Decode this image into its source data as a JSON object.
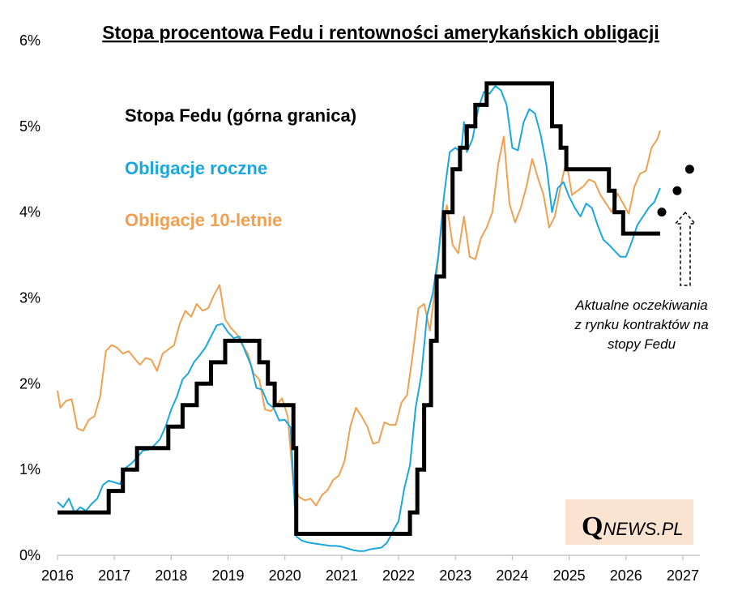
{
  "chart_data": {
    "type": "line",
    "title": "Stopa procentowa Fedu i rentowności amerykańskich obligacji",
    "xlim": [
      2016,
      2027.3
    ],
    "ylim": [
      0,
      6
    ],
    "x_ticks": [
      "2016",
      "2017",
      "2018",
      "2019",
      "2020",
      "2021",
      "2022",
      "2023",
      "2024",
      "2025",
      "2026",
      "2027"
    ],
    "y_ticks": [
      "0%",
      "1%",
      "2%",
      "3%",
      "4%",
      "5%",
      "6%"
    ],
    "colors": {
      "fed": "#000000",
      "oneyear": "#1aa7e0",
      "tenyear": "#f0a050",
      "expectations": "#000000"
    },
    "series": [
      {
        "name": "Stopa Fedu (górna granica)",
        "key": "fed",
        "points": [
          [
            2016.0,
            0.5
          ],
          [
            2016.9,
            0.5
          ],
          [
            2016.9,
            0.75
          ],
          [
            2017.15,
            0.75
          ],
          [
            2017.15,
            1.0
          ],
          [
            2017.4,
            1.0
          ],
          [
            2017.4,
            1.25
          ],
          [
            2017.95,
            1.25
          ],
          [
            2017.95,
            1.5
          ],
          [
            2018.2,
            1.5
          ],
          [
            2018.2,
            1.75
          ],
          [
            2018.45,
            1.75
          ],
          [
            2018.45,
            2.0
          ],
          [
            2018.7,
            2.0
          ],
          [
            2018.7,
            2.25
          ],
          [
            2018.95,
            2.25
          ],
          [
            2018.95,
            2.5
          ],
          [
            2019.55,
            2.5
          ],
          [
            2019.55,
            2.25
          ],
          [
            2019.7,
            2.25
          ],
          [
            2019.7,
            2.0
          ],
          [
            2019.82,
            2.0
          ],
          [
            2019.82,
            1.75
          ],
          [
            2020.15,
            1.75
          ],
          [
            2020.15,
            1.25
          ],
          [
            2020.2,
            1.25
          ],
          [
            2020.2,
            0.25
          ],
          [
            2022.2,
            0.25
          ],
          [
            2022.2,
            0.5
          ],
          [
            2022.33,
            0.5
          ],
          [
            2022.33,
            1.0
          ],
          [
            2022.45,
            1.0
          ],
          [
            2022.45,
            1.75
          ],
          [
            2022.57,
            1.75
          ],
          [
            2022.57,
            2.5
          ],
          [
            2022.67,
            2.5
          ],
          [
            2022.67,
            3.25
          ],
          [
            2022.8,
            3.25
          ],
          [
            2022.8,
            4.0
          ],
          [
            2022.95,
            4.0
          ],
          [
            2022.95,
            4.5
          ],
          [
            2023.08,
            4.5
          ],
          [
            2023.08,
            4.75
          ],
          [
            2023.2,
            4.75
          ],
          [
            2023.2,
            5.0
          ],
          [
            2023.35,
            5.0
          ],
          [
            2023.35,
            5.25
          ],
          [
            2023.55,
            5.25
          ],
          [
            2023.55,
            5.5
          ],
          [
            2024.7,
            5.5
          ],
          [
            2024.7,
            5.0
          ],
          [
            2024.85,
            5.0
          ],
          [
            2024.85,
            4.75
          ],
          [
            2024.95,
            4.75
          ],
          [
            2024.95,
            4.5
          ],
          [
            2025.7,
            4.5
          ],
          [
            2025.7,
            4.25
          ],
          [
            2025.8,
            4.25
          ],
          [
            2025.8,
            4.0
          ],
          [
            2025.95,
            4.0
          ],
          [
            2025.95,
            3.75
          ],
          [
            2026.6,
            3.75
          ]
        ]
      },
      {
        "name": "Obligacje roczne",
        "key": "oneyear",
        "points": [
          [
            2016.0,
            0.62
          ],
          [
            2016.1,
            0.56
          ],
          [
            2016.2,
            0.66
          ],
          [
            2016.3,
            0.5
          ],
          [
            2016.4,
            0.56
          ],
          [
            2016.5,
            0.52
          ],
          [
            2016.6,
            0.6
          ],
          [
            2016.7,
            0.66
          ],
          [
            2016.8,
            0.82
          ],
          [
            2016.9,
            0.87
          ],
          [
            2017.0,
            0.85
          ],
          [
            2017.1,
            0.83
          ],
          [
            2017.2,
            1.02
          ],
          [
            2017.3,
            1.07
          ],
          [
            2017.4,
            1.14
          ],
          [
            2017.5,
            1.22
          ],
          [
            2017.6,
            1.23
          ],
          [
            2017.7,
            1.28
          ],
          [
            2017.8,
            1.35
          ],
          [
            2017.9,
            1.5
          ],
          [
            2018.0,
            1.7
          ],
          [
            2018.1,
            1.85
          ],
          [
            2018.2,
            2.05
          ],
          [
            2018.3,
            2.12
          ],
          [
            2018.4,
            2.25
          ],
          [
            2018.5,
            2.33
          ],
          [
            2018.6,
            2.42
          ],
          [
            2018.7,
            2.55
          ],
          [
            2018.8,
            2.68
          ],
          [
            2018.9,
            2.7
          ],
          [
            2019.0,
            2.6
          ],
          [
            2019.1,
            2.53
          ],
          [
            2019.2,
            2.55
          ],
          [
            2019.3,
            2.38
          ],
          [
            2019.4,
            2.22
          ],
          [
            2019.5,
            1.95
          ],
          [
            2019.6,
            1.93
          ],
          [
            2019.7,
            1.77
          ],
          [
            2019.8,
            1.72
          ],
          [
            2019.9,
            1.57
          ],
          [
            2020.0,
            1.58
          ],
          [
            2020.1,
            1.49
          ],
          [
            2020.15,
            0.88
          ],
          [
            2020.2,
            0.22
          ],
          [
            2020.3,
            0.17
          ],
          [
            2020.4,
            0.15
          ],
          [
            2020.5,
            0.14
          ],
          [
            2020.6,
            0.13
          ],
          [
            2020.7,
            0.12
          ],
          [
            2020.8,
            0.11
          ],
          [
            2020.9,
            0.11
          ],
          [
            2021.0,
            0.1
          ],
          [
            2021.1,
            0.08
          ],
          [
            2021.2,
            0.06
          ],
          [
            2021.3,
            0.05
          ],
          [
            2021.4,
            0.05
          ],
          [
            2021.5,
            0.07
          ],
          [
            2021.6,
            0.08
          ],
          [
            2021.7,
            0.09
          ],
          [
            2021.8,
            0.15
          ],
          [
            2021.9,
            0.28
          ],
          [
            2022.0,
            0.4
          ],
          [
            2022.1,
            0.78
          ],
          [
            2022.2,
            1.05
          ],
          [
            2022.3,
            1.72
          ],
          [
            2022.4,
            2.1
          ],
          [
            2022.5,
            2.8
          ],
          [
            2022.6,
            3.05
          ],
          [
            2022.7,
            3.5
          ],
          [
            2022.8,
            4.2
          ],
          [
            2022.9,
            4.7
          ],
          [
            2023.0,
            4.75
          ],
          [
            2023.1,
            4.7
          ],
          [
            2023.15,
            5.05
          ],
          [
            2023.2,
            4.7
          ],
          [
            2023.3,
            4.85
          ],
          [
            2023.4,
            5.2
          ],
          [
            2023.5,
            5.4
          ],
          [
            2023.6,
            5.38
          ],
          [
            2023.7,
            5.47
          ],
          [
            2023.8,
            5.42
          ],
          [
            2023.9,
            5.25
          ],
          [
            2024.0,
            4.75
          ],
          [
            2024.1,
            4.72
          ],
          [
            2024.2,
            5.05
          ],
          [
            2024.3,
            5.2
          ],
          [
            2024.4,
            5.15
          ],
          [
            2024.5,
            4.9
          ],
          [
            2024.6,
            4.55
          ],
          [
            2024.7,
            4.0
          ],
          [
            2024.8,
            4.28
          ],
          [
            2024.9,
            4.35
          ],
          [
            2025.0,
            4.18
          ],
          [
            2025.1,
            4.05
          ],
          [
            2025.2,
            3.95
          ],
          [
            2025.3,
            4.1
          ],
          [
            2025.4,
            4.05
          ],
          [
            2025.5,
            3.85
          ],
          [
            2025.6,
            3.68
          ],
          [
            2025.7,
            3.62
          ],
          [
            2025.8,
            3.55
          ],
          [
            2025.9,
            3.48
          ],
          [
            2026.0,
            3.48
          ],
          [
            2026.1,
            3.65
          ],
          [
            2026.2,
            3.85
          ],
          [
            2026.3,
            3.95
          ],
          [
            2026.4,
            4.05
          ],
          [
            2026.5,
            4.12
          ],
          [
            2026.6,
            4.28
          ]
        ]
      },
      {
        "name": "Obligacje 10-letnie",
        "key": "tenyear",
        "points": [
          [
            2016.0,
            1.92
          ],
          [
            2016.05,
            1.72
          ],
          [
            2016.15,
            1.8
          ],
          [
            2016.25,
            1.82
          ],
          [
            2016.35,
            1.48
          ],
          [
            2016.45,
            1.45
          ],
          [
            2016.55,
            1.58
          ],
          [
            2016.65,
            1.62
          ],
          [
            2016.75,
            1.85
          ],
          [
            2016.85,
            2.38
          ],
          [
            2016.95,
            2.45
          ],
          [
            2017.05,
            2.42
          ],
          [
            2017.15,
            2.35
          ],
          [
            2017.25,
            2.38
          ],
          [
            2017.35,
            2.3
          ],
          [
            2017.45,
            2.22
          ],
          [
            2017.55,
            2.3
          ],
          [
            2017.65,
            2.28
          ],
          [
            2017.75,
            2.15
          ],
          [
            2017.85,
            2.35
          ],
          [
            2017.95,
            2.4
          ],
          [
            2018.05,
            2.45
          ],
          [
            2018.15,
            2.7
          ],
          [
            2018.25,
            2.85
          ],
          [
            2018.35,
            2.78
          ],
          [
            2018.45,
            2.93
          ],
          [
            2018.55,
            2.85
          ],
          [
            2018.65,
            2.88
          ],
          [
            2018.75,
            3.03
          ],
          [
            2018.85,
            3.15
          ],
          [
            2018.95,
            2.75
          ],
          [
            2019.05,
            2.65
          ],
          [
            2019.15,
            2.58
          ],
          [
            2019.25,
            2.45
          ],
          [
            2019.35,
            2.35
          ],
          [
            2019.45,
            2.12
          ],
          [
            2019.55,
            2.05
          ],
          [
            2019.65,
            1.7
          ],
          [
            2019.75,
            1.68
          ],
          [
            2019.85,
            1.75
          ],
          [
            2019.95,
            1.83
          ],
          [
            2020.05,
            1.62
          ],
          [
            2020.15,
            0.82
          ],
          [
            2020.25,
            0.68
          ],
          [
            2020.35,
            0.64
          ],
          [
            2020.45,
            0.66
          ],
          [
            2020.55,
            0.58
          ],
          [
            2020.65,
            0.7
          ],
          [
            2020.75,
            0.76
          ],
          [
            2020.85,
            0.88
          ],
          [
            2020.95,
            0.93
          ],
          [
            2021.05,
            1.1
          ],
          [
            2021.15,
            1.5
          ],
          [
            2021.25,
            1.72
          ],
          [
            2021.35,
            1.62
          ],
          [
            2021.45,
            1.5
          ],
          [
            2021.55,
            1.3
          ],
          [
            2021.65,
            1.32
          ],
          [
            2021.75,
            1.55
          ],
          [
            2021.85,
            1.52
          ],
          [
            2021.95,
            1.52
          ],
          [
            2022.05,
            1.78
          ],
          [
            2022.15,
            1.87
          ],
          [
            2022.25,
            2.35
          ],
          [
            2022.35,
            2.88
          ],
          [
            2022.45,
            2.93
          ],
          [
            2022.55,
            2.62
          ],
          [
            2022.65,
            3.15
          ],
          [
            2022.75,
            3.8
          ],
          [
            2022.85,
            4.08
          ],
          [
            2022.95,
            3.62
          ],
          [
            2023.05,
            3.52
          ],
          [
            2023.15,
            3.95
          ],
          [
            2023.25,
            3.48
          ],
          [
            2023.35,
            3.45
          ],
          [
            2023.45,
            3.7
          ],
          [
            2023.55,
            3.82
          ],
          [
            2023.65,
            4.0
          ],
          [
            2023.75,
            4.55
          ],
          [
            2023.85,
            4.88
          ],
          [
            2023.95,
            4.1
          ],
          [
            2024.05,
            3.88
          ],
          [
            2024.15,
            4.05
          ],
          [
            2024.25,
            4.3
          ],
          [
            2024.35,
            4.62
          ],
          [
            2024.45,
            4.4
          ],
          [
            2024.55,
            4.2
          ],
          [
            2024.65,
            3.82
          ],
          [
            2024.75,
            3.95
          ],
          [
            2024.85,
            4.3
          ],
          [
            2024.95,
            4.6
          ],
          [
            2025.05,
            4.2
          ],
          [
            2025.15,
            4.25
          ],
          [
            2025.25,
            4.3
          ],
          [
            2025.35,
            4.38
          ],
          [
            2025.45,
            4.35
          ],
          [
            2025.55,
            4.2
          ],
          [
            2025.65,
            4.1
          ],
          [
            2025.75,
            4.0
          ],
          [
            2025.85,
            4.22
          ],
          [
            2025.95,
            4.1
          ],
          [
            2026.05,
            3.98
          ],
          [
            2026.15,
            4.3
          ],
          [
            2026.25,
            4.45
          ],
          [
            2026.35,
            4.48
          ],
          [
            2026.45,
            4.75
          ],
          [
            2026.55,
            4.85
          ],
          [
            2026.6,
            4.95
          ]
        ]
      }
    ],
    "expectations": [
      [
        2026.63,
        4.0
      ],
      [
        2026.9,
        4.25
      ],
      [
        2027.12,
        4.5
      ]
    ],
    "legend_labels": {
      "fed": "Stopa Fedu (górna granica)",
      "oneyear": "Obligacje roczne",
      "tenyear": "Obligacje 10-letnie"
    },
    "annotation": [
      "Aktualne oczekiwania",
      "z rynku kontraktów na",
      "stopy Fedu"
    ],
    "annotation_arrow": "up",
    "logo": {
      "first": "Q",
      "rest": "NEWS.PL"
    }
  }
}
